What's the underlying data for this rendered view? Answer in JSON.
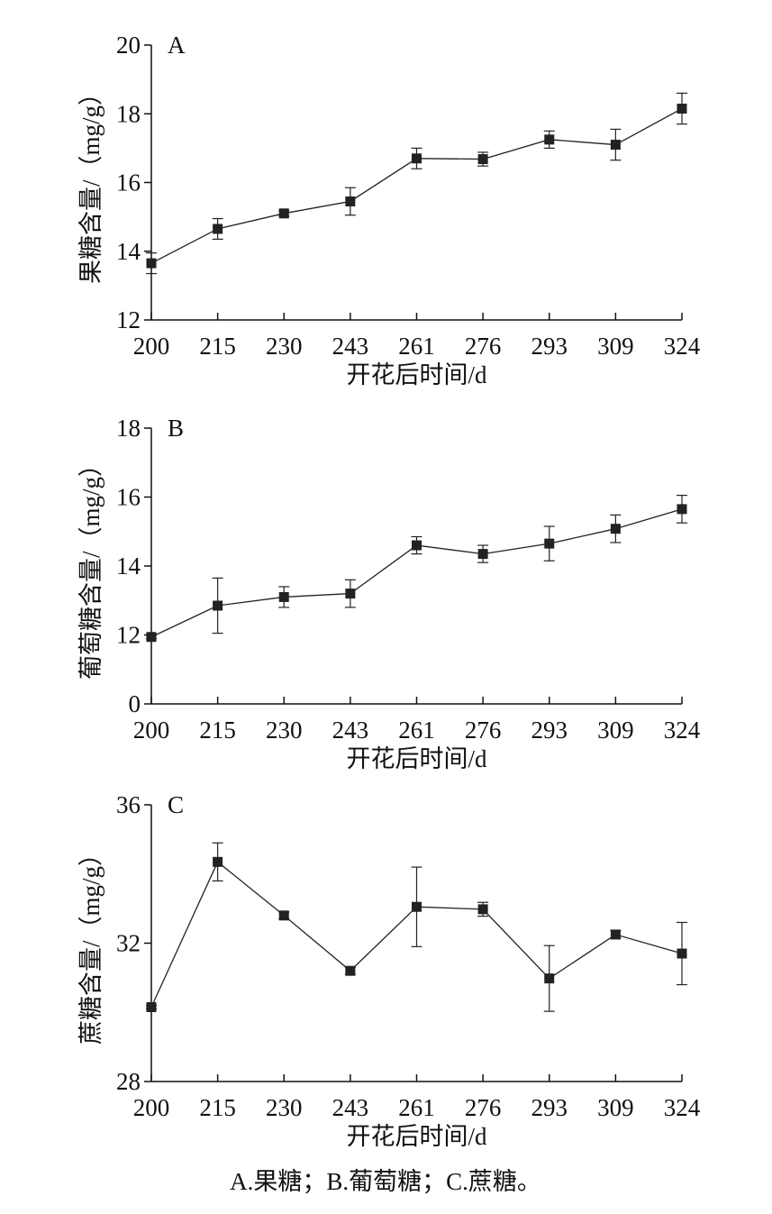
{
  "chart_data": [
    {
      "type": "line",
      "panel_label": "A",
      "y_label": "果糖含量/（mg/g）",
      "x_label": "开花后时间/d",
      "categories": [
        "200",
        "215",
        "230",
        "243",
        "261",
        "276",
        "293",
        "309",
        "324"
      ],
      "values": [
        13.65,
        14.65,
        15.1,
        15.45,
        16.7,
        16.68,
        17.25,
        17.1,
        18.15
      ],
      "errors": [
        0.3,
        0.3,
        0.08,
        0.4,
        0.3,
        0.2,
        0.25,
        0.45,
        0.45
      ],
      "color": "#222222",
      "ylim": [
        12,
        20
      ],
      "yticks": [
        12,
        14,
        16,
        18,
        20
      ]
    },
    {
      "type": "line",
      "panel_label": "B",
      "y_label": "葡萄糖含量/（mg/g）",
      "x_label": "开花后时间/d",
      "categories": [
        "200",
        "215",
        "230",
        "243",
        "261",
        "276",
        "293",
        "309",
        "324"
      ],
      "values": [
        11.65,
        12.85,
        13.1,
        13.2,
        14.6,
        14.35,
        14.65,
        15.08,
        15.65
      ],
      "errors": [
        0.3,
        0.8,
        0.3,
        0.4,
        0.25,
        0.25,
        0.5,
        0.4,
        0.4
      ],
      "color": "#222222",
      "ylim": [
        0,
        18
      ],
      "yticks": [
        0,
        12,
        14,
        16,
        18
      ],
      "axis_break": true
    },
    {
      "type": "line",
      "panel_label": "C",
      "y_label": "蔗糖含量/（mg/g）",
      "x_label": "开花后时间/d",
      "categories": [
        "200",
        "215",
        "230",
        "243",
        "261",
        "276",
        "293",
        "309",
        "324"
      ],
      "values": [
        30.15,
        34.35,
        32.8,
        31.2,
        33.05,
        32.98,
        30.98,
        32.25,
        31.7
      ],
      "errors": [
        0.05,
        0.55,
        0.1,
        0.1,
        1.15,
        0.2,
        0.95,
        0.12,
        0.9
      ],
      "color": "#222222",
      "ylim": [
        28,
        36
      ],
      "yticks": [
        28,
        32,
        36
      ]
    }
  ],
  "caption": "A.果糖；B.葡萄糖；C.蔗糖。"
}
